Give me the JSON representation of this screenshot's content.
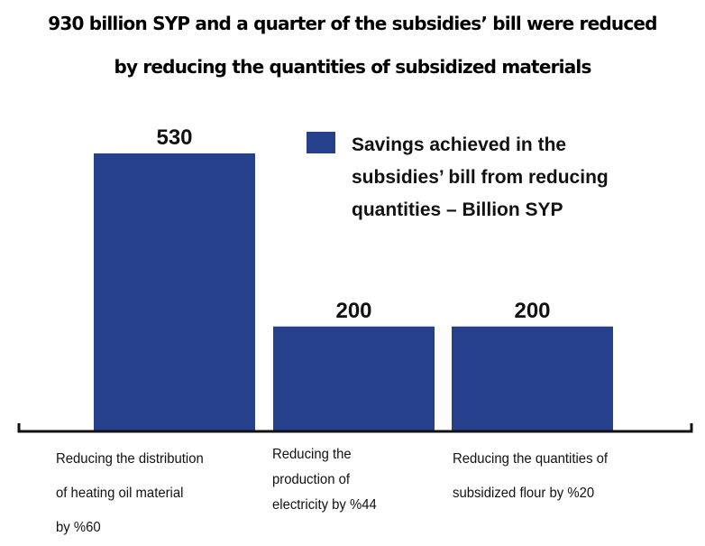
{
  "title_lines": [
    "930 billion SYP and a quarter of the subsidiesʼ bill were reduced",
    "by reducing the quantities of subsidized materials"
  ],
  "chart_data": {
    "type": "bar",
    "title": "930 billion SYP and a quarter of the subsidiesʼ bill were reduced by reducing the quantities of subsidized materials",
    "categories": [
      "Reducing the distribution of heating oil material by %60",
      "Reducing the production of electricity by %44",
      "Reducing the quantities of subsidized flour by %20"
    ],
    "category_lines": [
      [
        "Reducing the distribution",
        "of heating oil material",
        "by %60"
      ],
      [
        "Reducing the",
        "production of",
        "electricity by %44"
      ],
      [
        "Reducing the quantities of",
        "subsidized flour by %20"
      ]
    ],
    "series": [
      {
        "name": "Savings achieved in the subsidies’ bill from reducing quantities – Billion SYP",
        "values": [
          530,
          200,
          200
        ],
        "color": "#27408b"
      }
    ],
    "data_labels": [
      "530",
      "200",
      "200"
    ],
    "legend_lines": [
      "Savings achieved in the",
      "subsidies’ bill from reducing",
      "quantities – Billion SYP"
    ],
    "legend_placement": "top-right",
    "ylim": [
      0,
      530
    ],
    "grid": false,
    "y_axis_shown": false
  }
}
